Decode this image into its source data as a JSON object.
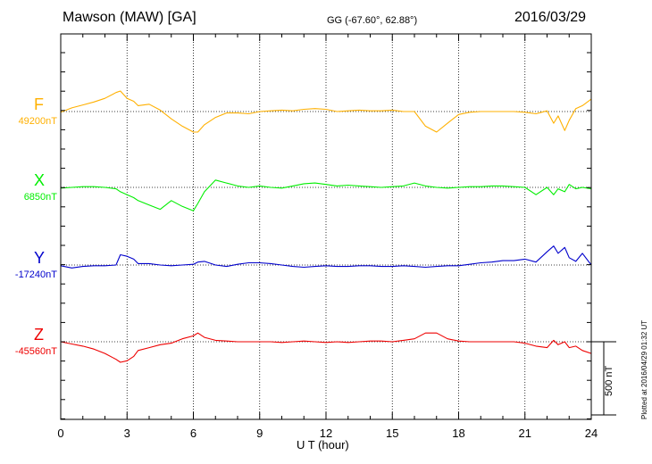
{
  "header": {
    "station": "Mawson (MAW)  [GA]",
    "coordinates": "GG (-67.60°,  62.88°)",
    "date": "2016/03/29"
  },
  "footer": {
    "plotted": "Plotted at 2016/04/29 01:32 UT",
    "scale_label": "500 nT"
  },
  "chart_data": {
    "type": "line",
    "xlabel": "U T (hour)",
    "xlim": [
      0,
      24
    ],
    "xticks": [
      "0",
      "3",
      "6",
      "9",
      "12",
      "15",
      "18",
      "21",
      "24"
    ],
    "grid": true,
    "scale_bar_nT": 500,
    "x": [
      0,
      0.5,
      1,
      1.5,
      2,
      2.5,
      2.7,
      3,
      3.3,
      3.5,
      4,
      4.5,
      5,
      5.5,
      6,
      6.2,
      6.5,
      7,
      7.5,
      8,
      8.5,
      9,
      9.5,
      10,
      10.5,
      11,
      11.5,
      12,
      12.5,
      13,
      13.5,
      14,
      14.5,
      15,
      15.5,
      16,
      16.5,
      17,
      17.5,
      18,
      18.5,
      19,
      19.5,
      20,
      20.5,
      21,
      21.5,
      22,
      22.3,
      22.5,
      22.8,
      23,
      23.3,
      23.6,
      24
    ],
    "series": [
      {
        "name": "F",
        "color": "#ffb000",
        "baseline_label": "49200nT",
        "baseline": 49200,
        "values": [
          49195,
          49225,
          49245,
          49265,
          49290,
          49330,
          49340,
          49290,
          49270,
          49240,
          49250,
          49210,
          49150,
          49100,
          49060,
          49060,
          49110,
          49160,
          49190,
          49190,
          49185,
          49200,
          49205,
          49210,
          49205,
          49215,
          49220,
          49215,
          49200,
          49205,
          49210,
          49205,
          49205,
          49210,
          49200,
          49200,
          49100,
          49060,
          49120,
          49180,
          49195,
          49200,
          49200,
          49200,
          49200,
          49195,
          49185,
          49205,
          49120,
          49170,
          49070,
          49140,
          49220,
          49240,
          49285
        ]
      },
      {
        "name": "X",
        "color": "#00ee00",
        "baseline_label": "6850nT",
        "baseline": 6850,
        "values": [
          6845,
          6850,
          6855,
          6855,
          6850,
          6840,
          6820,
          6800,
          6780,
          6760,
          6730,
          6700,
          6760,
          6720,
          6690,
          6740,
          6820,
          6900,
          6880,
          6860,
          6850,
          6860,
          6850,
          6845,
          6860,
          6875,
          6880,
          6870,
          6860,
          6865,
          6860,
          6855,
          6850,
          6855,
          6860,
          6880,
          6860,
          6850,
          6845,
          6850,
          6855,
          6855,
          6860,
          6860,
          6855,
          6850,
          6800,
          6850,
          6800,
          6840,
          6820,
          6870,
          6840,
          6850,
          6840
        ]
      },
      {
        "name": "Y",
        "color": "#0000cc",
        "baseline_label": "-17240nT",
        "baseline": -17240,
        "values": [
          -17245,
          -17260,
          -17250,
          -17245,
          -17245,
          -17240,
          -17170,
          -17180,
          -17200,
          -17230,
          -17230,
          -17240,
          -17245,
          -17240,
          -17235,
          -17220,
          -17215,
          -17240,
          -17250,
          -17235,
          -17225,
          -17225,
          -17230,
          -17240,
          -17250,
          -17255,
          -17250,
          -17245,
          -17250,
          -17250,
          -17245,
          -17245,
          -17250,
          -17250,
          -17245,
          -17250,
          -17255,
          -17250,
          -17245,
          -17245,
          -17235,
          -17225,
          -17220,
          -17210,
          -17210,
          -17200,
          -17220,
          -17150,
          -17110,
          -17160,
          -17120,
          -17190,
          -17215,
          -17160,
          -17240
        ]
      },
      {
        "name": "Z",
        "color": "#ee0000",
        "baseline_label": "-45560nT",
        "baseline": -45560,
        "values": [
          -45560,
          -45575,
          -45590,
          -45610,
          -45640,
          -45680,
          -45700,
          -45690,
          -45660,
          -45620,
          -45600,
          -45580,
          -45570,
          -45540,
          -45520,
          -45500,
          -45530,
          -45550,
          -45555,
          -45560,
          -45560,
          -45560,
          -45560,
          -45565,
          -45560,
          -45555,
          -45560,
          -45565,
          -45560,
          -45565,
          -45560,
          -45555,
          -45555,
          -45560,
          -45550,
          -45540,
          -45500,
          -45500,
          -45540,
          -45555,
          -45560,
          -45560,
          -45560,
          -45560,
          -45560,
          -45570,
          -45590,
          -45600,
          -45550,
          -45580,
          -45560,
          -45600,
          -45590,
          -45620,
          -45640
        ]
      }
    ]
  }
}
